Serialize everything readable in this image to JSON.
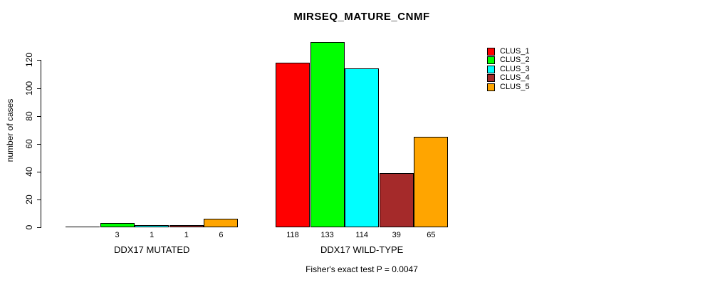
{
  "title": "MIRSEQ_MATURE_CNMF",
  "stats_note": "Fisher's exact test P = 0.0047",
  "y_axis": {
    "label": "number of cases",
    "ticks": [
      0,
      20,
      40,
      60,
      80,
      100,
      120
    ]
  },
  "legend": {
    "entries": [
      {
        "label": "CLUS_1",
        "color": "#FF0000"
      },
      {
        "label": "CLUS_2",
        "color": "#00FF00"
      },
      {
        "label": "CLUS_3",
        "color": "#00FFFF"
      },
      {
        "label": "CLUS_4",
        "color": "#A52A2A"
      },
      {
        "label": "CLUS_5",
        "color": "#FFA500"
      }
    ]
  },
  "chart_data": {
    "type": "bar",
    "title": "MIRSEQ_MATURE_CNMF",
    "xlabel": "",
    "ylabel": "number of cases",
    "ylim": [
      0,
      133
    ],
    "yticks": [
      0,
      20,
      40,
      60,
      80,
      100,
      120
    ],
    "grid": false,
    "legend_position": "right",
    "series_names": [
      "CLUS_1",
      "CLUS_2",
      "CLUS_3",
      "CLUS_4",
      "CLUS_5"
    ],
    "series_colors": [
      "#FF0000",
      "#00FF00",
      "#00FFFF",
      "#A52A2A",
      "#FFA500"
    ],
    "groups": [
      {
        "label": "DDX17 MUTATED",
        "values": [
          0,
          3,
          1,
          1,
          6
        ],
        "bar_labels": [
          "",
          "3",
          "1",
          "1",
          "6"
        ]
      },
      {
        "label": "DDX17 WILD-TYPE",
        "values": [
          118,
          133,
          114,
          39,
          65
        ],
        "bar_labels": [
          "118",
          "133",
          "114",
          "39",
          "65"
        ]
      }
    ]
  }
}
